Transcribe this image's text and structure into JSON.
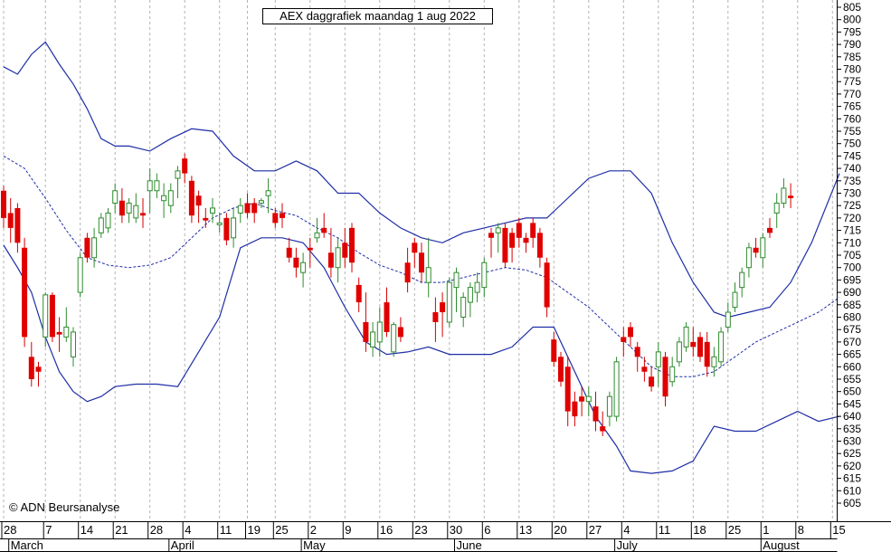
{
  "chart_data": {
    "type": "candlestick",
    "title": "AEX daggrafiek maandag 1 aug 2022",
    "copyright": "© ADN Beursanalyse",
    "ylim": [
      600,
      808
    ],
    "y_ticks": [
      605,
      610,
      615,
      620,
      625,
      630,
      635,
      640,
      645,
      650,
      655,
      660,
      665,
      670,
      675,
      680,
      685,
      690,
      695,
      700,
      705,
      710,
      715,
      720,
      725,
      730,
      735,
      740,
      745,
      750,
      755,
      760,
      765,
      770,
      775,
      780,
      785,
      790,
      795,
      800,
      805
    ],
    "day_labels": [
      {
        "label": "28",
        "idx": 0
      },
      {
        "label": "7",
        "idx": 6
      },
      {
        "label": "14",
        "idx": 11
      },
      {
        "label": "21",
        "idx": 16
      },
      {
        "label": "28",
        "idx": 21
      },
      {
        "label": "4",
        "idx": 26
      },
      {
        "label": "11",
        "idx": 31
      },
      {
        "label": "19",
        "idx": 35
      },
      {
        "label": "25",
        "idx": 39
      },
      {
        "label": "2",
        "idx": 44
      },
      {
        "label": "9",
        "idx": 49
      },
      {
        "label": "16",
        "idx": 54
      },
      {
        "label": "23",
        "idx": 59
      },
      {
        "label": "30",
        "idx": 64
      },
      {
        "label": "6",
        "idx": 69
      },
      {
        "label": "13",
        "idx": 74
      },
      {
        "label": "20",
        "idx": 79
      },
      {
        "label": "27",
        "idx": 84
      },
      {
        "label": "4",
        "idx": 89
      },
      {
        "label": "11",
        "idx": 94
      },
      {
        "label": "18",
        "idx": 99
      },
      {
        "label": "25",
        "idx": 104
      },
      {
        "label": "1",
        "idx": 109
      },
      {
        "label": "8",
        "idx": 114
      },
      {
        "label": "15",
        "idx": 119
      }
    ],
    "month_labels": [
      {
        "label": "March",
        "idx": 1
      },
      {
        "label": "April",
        "idx": 24
      },
      {
        "label": "May",
        "idx": 43
      },
      {
        "label": "June",
        "idx": 65
      },
      {
        "label": "July",
        "idx": 88
      },
      {
        "label": "August",
        "idx": 109
      }
    ],
    "candles": [
      [
        731,
        733,
        716,
        720
      ],
      [
        722,
        728,
        710,
        716
      ],
      [
        724,
        726,
        706,
        710
      ],
      [
        708,
        712,
        668,
        672
      ],
      [
        664,
        670,
        652,
        655
      ],
      [
        660,
        662,
        652,
        658
      ],
      [
        672,
        690,
        668,
        689
      ],
      [
        689,
        690,
        670,
        672
      ],
      [
        674,
        680,
        666,
        673
      ],
      [
        672,
        684,
        670,
        676
      ],
      [
        664,
        676,
        660,
        674
      ],
      [
        690,
        706,
        688,
        704
      ],
      [
        712,
        714,
        702,
        704
      ],
      [
        704,
        716,
        700,
        712
      ],
      [
        714,
        722,
        712,
        720
      ],
      [
        716,
        724,
        714,
        722
      ],
      [
        726,
        734,
        722,
        731
      ],
      [
        727,
        732,
        718,
        721
      ],
      [
        722,
        728,
        718,
        726
      ],
      [
        720,
        730,
        718,
        725
      ],
      [
        722,
        728,
        716,
        721
      ],
      [
        731,
        740,
        722,
        735
      ],
      [
        731,
        738,
        728,
        735
      ],
      [
        727,
        734,
        720,
        729
      ],
      [
        725,
        734,
        722,
        731
      ],
      [
        736,
        741,
        728,
        739
      ],
      [
        744,
        746,
        734,
        738
      ],
      [
        735,
        737,
        718,
        721
      ],
      [
        729,
        731,
        718,
        725
      ],
      [
        720,
        724,
        716,
        719
      ],
      [
        722,
        728,
        718,
        724
      ],
      [
        718,
        722,
        714,
        718
      ],
      [
        720,
        722,
        709,
        711
      ],
      [
        712,
        724,
        708,
        720
      ],
      [
        722,
        728,
        718,
        725
      ],
      [
        726,
        730,
        720,
        722
      ],
      [
        726,
        728,
        718,
        722
      ],
      [
        726,
        728,
        724,
        727
      ],
      [
        729,
        736,
        722,
        731
      ],
      [
        722,
        724,
        716,
        718
      ],
      [
        722,
        726,
        716,
        720
      ],
      [
        708,
        712,
        702,
        704
      ],
      [
        704,
        708,
        696,
        700
      ],
      [
        698,
        706,
        692,
        702
      ],
      [
        708,
        712,
        700,
        707
      ],
      [
        712,
        720,
        710,
        714
      ],
      [
        716,
        722,
        712,
        714
      ],
      [
        706,
        716,
        696,
        700
      ],
      [
        700,
        712,
        694,
        708
      ],
      [
        710,
        716,
        700,
        704
      ],
      [
        716,
        718,
        698,
        702
      ],
      [
        693,
        696,
        682,
        686
      ],
      [
        678,
        690,
        666,
        670
      ],
      [
        668,
        678,
        664,
        674
      ],
      [
        670,
        684,
        664,
        678
      ],
      [
        686,
        692,
        672,
        674
      ],
      [
        666,
        678,
        664,
        677
      ],
      [
        676,
        680,
        670,
        672
      ],
      [
        702,
        708,
        690,
        694
      ],
      [
        710,
        712,
        700,
        706
      ],
      [
        706,
        710,
        694,
        698
      ],
      [
        694,
        712,
        688,
        700
      ],
      [
        682,
        688,
        670,
        678
      ],
      [
        686,
        690,
        672,
        682
      ],
      [
        678,
        696,
        676,
        694
      ],
      [
        692,
        700,
        682,
        698
      ],
      [
        680,
        690,
        676,
        688
      ],
      [
        686,
        694,
        680,
        692
      ],
      [
        690,
        698,
        686,
        694
      ],
      [
        692,
        704,
        688,
        702
      ],
      [
        714,
        716,
        704,
        712
      ],
      [
        714,
        718,
        706,
        716
      ],
      [
        716,
        718,
        700,
        702
      ],
      [
        714,
        716,
        702,
        708
      ],
      [
        718,
        720,
        708,
        712
      ],
      [
        712,
        714,
        706,
        710
      ],
      [
        718,
        720,
        708,
        712
      ],
      [
        714,
        716,
        700,
        704
      ],
      [
        702,
        704,
        680,
        684
      ],
      [
        671,
        674,
        660,
        662
      ],
      [
        664,
        666,
        652,
        654
      ],
      [
        660,
        664,
        636,
        642
      ],
      [
        646,
        650,
        636,
        640
      ],
      [
        648,
        652,
        640,
        646
      ],
      [
        646,
        652,
        640,
        648
      ],
      [
        644,
        650,
        634,
        638
      ],
      [
        636,
        642,
        632,
        634
      ],
      [
        640,
        650,
        636,
        648
      ],
      [
        640,
        664,
        638,
        662
      ],
      [
        672,
        676,
        664,
        670
      ],
      [
        676,
        678,
        668,
        672
      ],
      [
        668,
        670,
        658,
        664
      ],
      [
        660,
        664,
        654,
        658
      ],
      [
        656,
        660,
        650,
        652
      ],
      [
        660,
        670,
        652,
        666
      ],
      [
        664,
        666,
        644,
        648
      ],
      [
        654,
        664,
        652,
        660
      ],
      [
        662,
        672,
        660,
        670
      ],
      [
        668,
        678,
        666,
        676
      ],
      [
        670,
        676,
        664,
        668
      ],
      [
        672,
        674,
        662,
        664
      ],
      [
        670,
        674,
        656,
        660
      ],
      [
        660,
        668,
        656,
        664
      ],
      [
        662,
        676,
        660,
        674
      ],
      [
        676,
        686,
        674,
        682
      ],
      [
        684,
        694,
        682,
        690
      ],
      [
        692,
        700,
        688,
        698
      ],
      [
        700,
        710,
        696,
        708
      ],
      [
        708,
        712,
        704,
        706
      ],
      [
        704,
        714,
        700,
        712
      ],
      [
        716,
        720,
        712,
        714
      ],
      [
        722,
        730,
        716,
        726
      ],
      [
        726,
        736,
        724,
        732
      ],
      [
        729,
        734,
        724,
        728
      ]
    ],
    "bollinger": {
      "middle": [
        [
          0,
          745
        ],
        [
          3,
          740
        ],
        [
          6,
          728
        ],
        [
          9,
          715
        ],
        [
          12,
          704
        ],
        [
          15,
          701
        ],
        [
          18,
          700
        ],
        [
          21,
          701
        ],
        [
          24,
          704
        ],
        [
          27,
          712
        ],
        [
          30,
          720
        ],
        [
          33,
          724
        ],
        [
          36,
          726
        ],
        [
          39,
          723
        ],
        [
          42,
          721
        ],
        [
          45,
          716
        ],
        [
          48,
          712
        ],
        [
          51,
          706
        ],
        [
          54,
          701
        ],
        [
          57,
          698
        ],
        [
          60,
          694
        ],
        [
          63,
          694
        ],
        [
          66,
          696
        ],
        [
          69,
          698
        ],
        [
          72,
          700
        ],
        [
          75,
          699
        ],
        [
          78,
          696
        ],
        [
          81,
          690
        ],
        [
          84,
          684
        ],
        [
          87,
          676
        ],
        [
          90,
          668
        ],
        [
          93,
          660
        ],
        [
          96,
          656
        ],
        [
          99,
          656
        ],
        [
          102,
          658
        ],
        [
          105,
          664
        ],
        [
          108,
          670
        ],
        [
          111,
          674
        ],
        [
          114,
          678
        ],
        [
          117,
          682
        ],
        [
          120,
          688
        ]
      ],
      "upper": [
        [
          0,
          781
        ],
        [
          2,
          778
        ],
        [
          4,
          786
        ],
        [
          6,
          791
        ],
        [
          8,
          782
        ],
        [
          10,
          774
        ],
        [
          12,
          764
        ],
        [
          14,
          752
        ],
        [
          16,
          749
        ],
        [
          18,
          749
        ],
        [
          21,
          747
        ],
        [
          24,
          752
        ],
        [
          27,
          756
        ],
        [
          30,
          755
        ],
        [
          33,
          745
        ],
        [
          36,
          739
        ],
        [
          39,
          739
        ],
        [
          42,
          743
        ],
        [
          45,
          739
        ],
        [
          48,
          730
        ],
        [
          51,
          730
        ],
        [
          54,
          722
        ],
        [
          57,
          716
        ],
        [
          60,
          712
        ],
        [
          63,
          710
        ],
        [
          66,
          714
        ],
        [
          69,
          716
        ],
        [
          72,
          718
        ],
        [
          75,
          720
        ],
        [
          78,
          720
        ],
        [
          81,
          728
        ],
        [
          84,
          736
        ],
        [
          87,
          739
        ],
        [
          90,
          739
        ],
        [
          93,
          730
        ],
        [
          96,
          710
        ],
        [
          99,
          694
        ],
        [
          102,
          682
        ],
        [
          104,
          680
        ],
        [
          107,
          682
        ],
        [
          110,
          684
        ],
        [
          113,
          694
        ],
        [
          116,
          710
        ],
        [
          120,
          738
        ]
      ],
      "lower": [
        [
          0,
          709
        ],
        [
          2,
          700
        ],
        [
          4,
          690
        ],
        [
          6,
          672
        ],
        [
          8,
          658
        ],
        [
          10,
          650
        ],
        [
          12,
          646
        ],
        [
          14,
          648
        ],
        [
          16,
          652
        ],
        [
          19,
          653
        ],
        [
          22,
          653
        ],
        [
          25,
          652
        ],
        [
          28,
          666
        ],
        [
          31,
          680
        ],
        [
          34,
          708
        ],
        [
          37,
          712
        ],
        [
          40,
          712
        ],
        [
          43,
          710
        ],
        [
          46,
          700
        ],
        [
          49,
          684
        ],
        [
          52,
          670
        ],
        [
          55,
          665
        ],
        [
          58,
          666
        ],
        [
          61,
          668
        ],
        [
          64,
          665
        ],
        [
          67,
          665
        ],
        [
          70,
          665
        ],
        [
          73,
          668
        ],
        [
          76,
          676
        ],
        [
          79,
          676
        ],
        [
          82,
          658
        ],
        [
          85,
          640
        ],
        [
          88,
          628
        ],
        [
          90,
          618
        ],
        [
          93,
          617
        ],
        [
          96,
          618
        ],
        [
          99,
          622
        ],
        [
          102,
          636
        ],
        [
          105,
          634
        ],
        [
          108,
          634
        ],
        [
          111,
          638
        ],
        [
          114,
          642
        ],
        [
          117,
          638
        ],
        [
          120,
          640
        ]
      ]
    }
  }
}
